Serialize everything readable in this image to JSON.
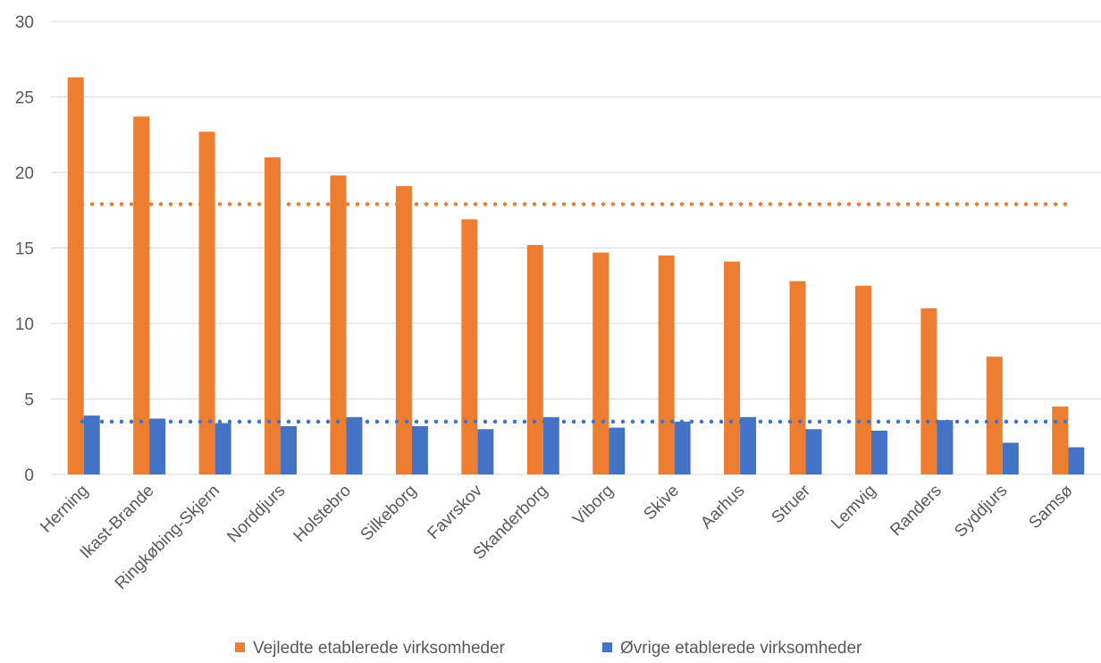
{
  "chart_data": {
    "type": "bar",
    "categories": [
      "Herning",
      "Ikast-Brande",
      "Ringkøbing-Skjern",
      "Norddjurs",
      "Holstebro",
      "Silkeborg",
      "Favrskov",
      "Skanderborg",
      "Viborg",
      "Skive",
      "Aarhus",
      "Struer",
      "Lemvig",
      "Randers",
      "Syddjurs",
      "Samsø"
    ],
    "series": [
      {
        "name": "Vejledte etablerede virksomheder",
        "color": "#ED7D31",
        "values": [
          26.3,
          23.7,
          22.7,
          21.0,
          19.8,
          19.1,
          16.9,
          15.2,
          14.7,
          14.5,
          14.1,
          12.8,
          12.5,
          11.0,
          7.8,
          4.5
        ],
        "average": 17.9
      },
      {
        "name": "Øvrige etablerede virksomheder",
        "color": "#4472C4",
        "values": [
          3.9,
          3.7,
          3.4,
          3.2,
          3.8,
          3.2,
          3.0,
          3.8,
          3.1,
          3.5,
          3.8,
          3.0,
          2.9,
          3.6,
          2.1,
          1.8
        ],
        "average": 3.5
      }
    ],
    "ylim": [
      0,
      30
    ],
    "yticks": [
      "0",
      "5",
      "10",
      "15",
      "20",
      "25",
      "30"
    ],
    "grid": true,
    "legend_position": "bottom",
    "title": "",
    "xlabel": "",
    "ylabel": ""
  }
}
